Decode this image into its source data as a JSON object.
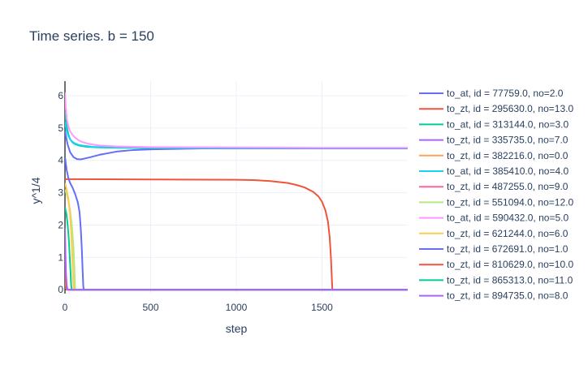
{
  "chart_data": {
    "type": "line",
    "title": "Time series.  b = 150",
    "xlabel": "step",
    "ylabel": "y^1/4",
    "xlim": [
      0,
      2000
    ],
    "ylim": [
      -0.12,
      6.45
    ],
    "x_ticks": [
      0,
      500,
      1000,
      1500
    ],
    "x_tick_labels": [
      "0",
      "500",
      "1000",
      "1500"
    ],
    "y_ticks": [
      0,
      1,
      2,
      3,
      4,
      5,
      6
    ],
    "y_tick_labels": [
      "0",
      "1",
      "2",
      "3",
      "4",
      "5",
      "6"
    ],
    "grid": true,
    "legend_position": "right",
    "series": [
      {
        "name": "to_at, id = 77759.0, no=2.0",
        "color": "#636efa",
        "x": [
          0,
          15,
          30,
          50,
          70,
          90,
          110,
          150,
          200,
          300,
          400,
          500,
          600,
          700,
          800,
          1000,
          1500,
          2000
        ],
        "y": [
          4.9,
          4.5,
          4.25,
          4.1,
          4.04,
          4.03,
          4.05,
          4.1,
          4.17,
          4.27,
          4.32,
          4.34,
          4.35,
          4.36,
          4.37,
          4.37,
          4.37,
          4.37
        ]
      },
      {
        "name": "to_zt, id = 295630.0, no=13.0",
        "color": "#EF553B",
        "x": [
          0,
          500,
          1000,
          1100,
          1200,
          1300,
          1350,
          1400,
          1450,
          1480,
          1500,
          1520,
          1535,
          1545,
          1552,
          1557,
          1560,
          1565,
          2000
        ],
        "y": [
          3.42,
          3.41,
          3.4,
          3.39,
          3.36,
          3.3,
          3.24,
          3.16,
          3.02,
          2.88,
          2.72,
          2.45,
          2.1,
          1.6,
          1.0,
          0.4,
          0.02,
          0,
          0
        ]
      },
      {
        "name": "to_at, id = 313144.0, no=3.0",
        "color": "#00cc96",
        "x": [
          0,
          10,
          20,
          30,
          45,
          60,
          80,
          100,
          130,
          160,
          200,
          300,
          500,
          1000,
          1500,
          2000
        ],
        "y": [
          5.5,
          5.05,
          4.8,
          4.65,
          4.55,
          4.5,
          4.46,
          4.44,
          4.42,
          4.41,
          4.4,
          4.39,
          4.38,
          4.38,
          4.38,
          4.38
        ]
      },
      {
        "name": "to_zt, id = 335735.0, no=7.0",
        "color": "#ab63fa",
        "x": [
          0,
          3,
          6,
          10,
          14,
          20,
          2000
        ],
        "y": [
          1.3,
          0.8,
          0.4,
          0.1,
          0.01,
          0,
          0
        ]
      },
      {
        "name": "to_zt, id = 382216.0, no=0.0",
        "color": "#FFA15A",
        "x": [
          0,
          2,
          4,
          7,
          10,
          15,
          2000
        ],
        "y": [
          0.7,
          0.4,
          0.2,
          0.06,
          0.01,
          0,
          0
        ]
      },
      {
        "name": "to_at, id = 385410.0, no=4.0",
        "color": "#19d3f3",
        "x": [
          0,
          10,
          20,
          30,
          45,
          60,
          80,
          100,
          130,
          160,
          200,
          300,
          500,
          1000,
          1500,
          2000
        ],
        "y": [
          5.2,
          4.9,
          4.75,
          4.65,
          4.57,
          4.52,
          4.48,
          4.46,
          4.44,
          4.42,
          4.41,
          4.4,
          4.39,
          4.38,
          4.38,
          4.38
        ]
      },
      {
        "name": "to_zt, id = 487255.0, no=9.0",
        "color": "#FF6692",
        "x": [
          0,
          3,
          6,
          10,
          14,
          20,
          2000
        ],
        "y": [
          1.1,
          0.65,
          0.3,
          0.08,
          0.01,
          0,
          0
        ]
      },
      {
        "name": "to_zt, id = 551094.0, no=12.0",
        "color": "#B6E880",
        "x": [
          0,
          10,
          20,
          30,
          40,
          50,
          55,
          58,
          60,
          2000
        ],
        "y": [
          3.1,
          2.95,
          2.75,
          2.45,
          2.0,
          1.3,
          0.7,
          0.2,
          0,
          0
        ]
      },
      {
        "name": "to_at, id = 590432.0, no=5.0",
        "color": "#FF97FF",
        "x": [
          0,
          5,
          10,
          20,
          30,
          45,
          60,
          80,
          100,
          130,
          160,
          200,
          300,
          500,
          1000,
          1500,
          2000
        ],
        "y": [
          6.1,
          5.6,
          5.3,
          5.05,
          4.9,
          4.78,
          4.7,
          4.62,
          4.57,
          4.52,
          4.49,
          4.46,
          4.43,
          4.41,
          4.4,
          4.39,
          4.39
        ]
      },
      {
        "name": "to_zt, id = 621244.0, no=6.0",
        "color": "#FECB52",
        "x": [
          0,
          10,
          20,
          30,
          38,
          44,
          48,
          52,
          2000
        ],
        "y": [
          3.3,
          3.1,
          2.8,
          2.3,
          1.6,
          0.9,
          0.3,
          0,
          0
        ]
      },
      {
        "name": "to_zt, id = 672691.0, no=1.0",
        "color": "#636efa",
        "x": [
          0,
          10,
          20,
          30,
          45,
          60,
          75,
          85,
          92,
          98,
          103,
          107,
          110,
          2000
        ],
        "y": [
          4.1,
          3.7,
          3.45,
          3.3,
          3.15,
          2.95,
          2.7,
          2.4,
          1.9,
          1.3,
          0.6,
          0.1,
          0,
          0
        ]
      },
      {
        "name": "to_zt, id = 810629.0, no=10.0",
        "color": "#EF553B",
        "x": [
          0,
          3,
          6,
          10,
          15,
          2000
        ],
        "y": [
          0.9,
          0.5,
          0.2,
          0.04,
          0,
          0
        ]
      },
      {
        "name": "to_zt, id = 865313.0, no=11.0",
        "color": "#00cc96",
        "x": [
          0,
          8,
          15,
          22,
          28,
          33,
          36,
          40,
          2000
        ],
        "y": [
          2.55,
          2.35,
          2.05,
          1.6,
          1.0,
          0.5,
          0.15,
          0,
          0
        ]
      },
      {
        "name": "to_zt, id = 894735.0, no=8.0",
        "color": "#ab63fa",
        "x": [
          0,
          3,
          6,
          10,
          14,
          20,
          2000
        ],
        "y": [
          1.9,
          1.1,
          0.5,
          0.15,
          0.02,
          0,
          0
        ]
      }
    ]
  }
}
